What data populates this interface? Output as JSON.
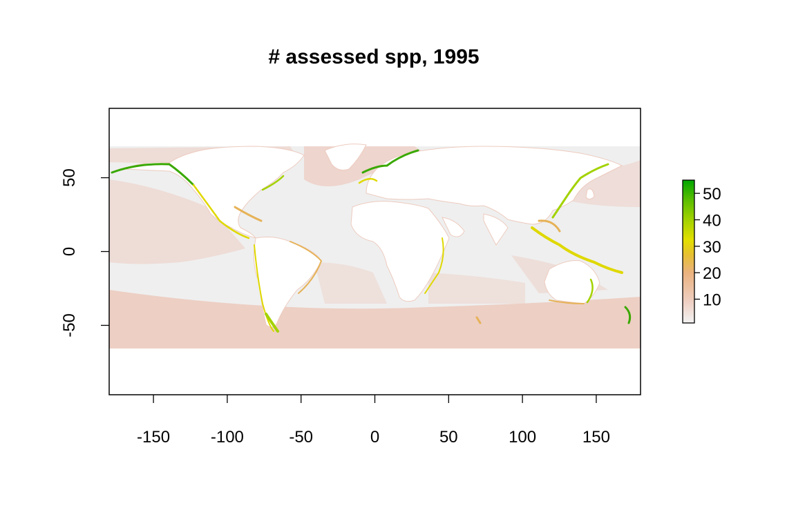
{
  "title": "# assessed spp, 1995",
  "x_axis": {
    "range": [
      -180,
      180
    ],
    "ticks": [
      -150,
      -100,
      -50,
      0,
      50,
      100,
      150
    ],
    "tick_labels": [
      "-150",
      "-100",
      "-50",
      "0",
      "50",
      "100",
      "150"
    ]
  },
  "y_axis": {
    "range": [
      -97,
      97
    ],
    "ticks": [
      50,
      0,
      -50
    ],
    "tick_labels": [
      "50",
      "0",
      "-50"
    ]
  },
  "legend": {
    "range": [
      1,
      55
    ],
    "ticks": [
      10,
      20,
      30,
      40,
      50
    ],
    "tick_labels": [
      "10",
      "20",
      "30",
      "40",
      "50"
    ],
    "colors": [
      "#f2f2f2",
      "#eecfc2",
      "#ebb27f",
      "#e6c030",
      "#e3df00",
      "#a3d200",
      "#5bbe00",
      "#00a600"
    ]
  },
  "colors": {
    "ocean_low": "#efefef",
    "ocean_mid": "#edcbbf",
    "coast_orange": "#e6b257",
    "coast_yellow": "#dfd800",
    "coast_green": "#3aa800",
    "land": "#ffffff"
  }
}
